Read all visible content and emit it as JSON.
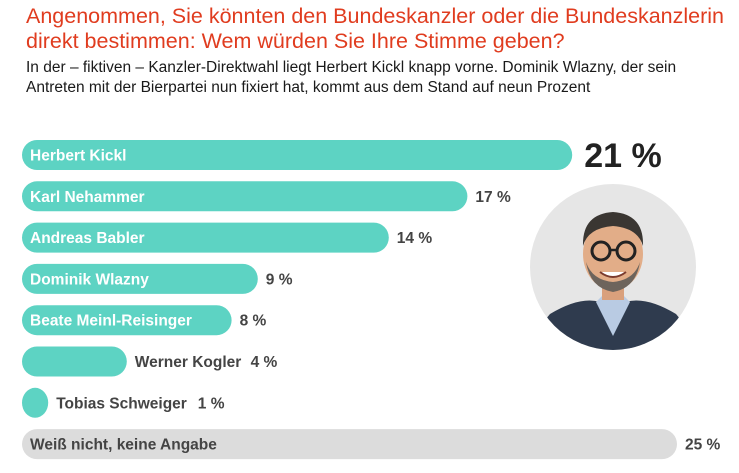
{
  "title": "Angenommen, Sie könnten den Bundeskanzler oder die Bundeskanzlerin direkt bestimmen: Wem würden Sie Ihre Stimme geben?",
  "subtitle": "In der – fiktiven – Kanzler-Direktwahl liegt Herbert Kickl knapp vorne. Dominik Wlazny, der sein Antreten mit der Bierpartei nun fixiert hat, kommt aus dem Stand auf neun Prozent",
  "colors": {
    "title": "#e03c1f",
    "bar": "#5dd3c3",
    "bar_undecided": "#dcdcdc",
    "text": "#333333"
  },
  "chart_data": {
    "type": "bar",
    "orientation": "horizontal",
    "categories": [
      "Herbert Kickl",
      "Karl Nehammer",
      "Andreas Babler",
      "Dominik Wlazny",
      "Beate Meinl-Reisinger",
      "Werner Kogler",
      "Tobias Schweiger",
      "Weiß nicht, keine Angabe"
    ],
    "values": [
      21,
      17,
      14,
      9,
      8,
      4,
      1,
      25
    ],
    "value_labels": [
      "21 %",
      "17 %",
      "14 %",
      "9 %",
      "8 %",
      "4 %",
      "1 %",
      "25 %"
    ],
    "unit": "%",
    "grid": false,
    "legend": "none"
  },
  "image": {
    "icon": "portrait-photo-icon"
  }
}
